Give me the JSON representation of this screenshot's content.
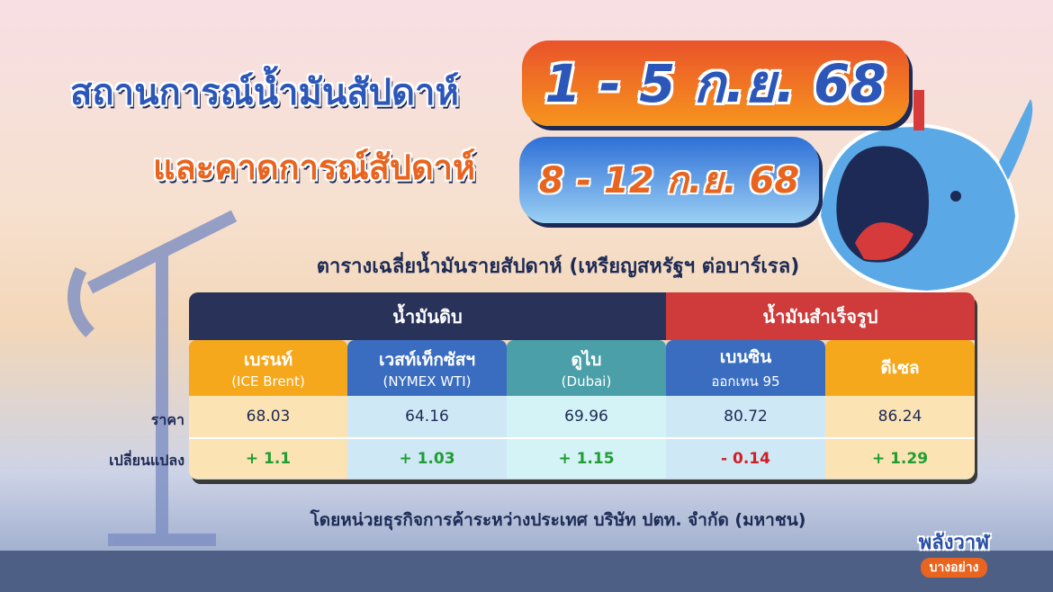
{
  "title": {
    "line1": "สถานการณ์น้ำมันสัปดาห์",
    "dates1": "1 - 5 ก.ย. 68",
    "line2": "และคาดการณ์สัปดาห์",
    "dates2": "8 - 12 ก.ย. 68"
  },
  "subtitle": "ตารางเฉลี่ยน้ำมันรายสัปดาห์ (เหรียญสหรัฐฯ ต่อบาร์เรล)",
  "table": {
    "groups": {
      "crude": "น้ำมันดิบ",
      "refined": "น้ำมันสำเร็จรูป"
    },
    "row_labels": {
      "price": "ราคา",
      "change": "เปลี่ยนแปลง"
    },
    "columns": [
      {
        "name": "เบรนท์",
        "sub": "(ICE Brent)",
        "price": "68.03",
        "change": "+ 1.1",
        "color": "#f5a81c"
      },
      {
        "name": "เวสท์เท็กซัสฯ",
        "sub": "(NYMEX WTI)",
        "price": "64.16",
        "change": "+ 1.03",
        "color": "#3a6dc0"
      },
      {
        "name": "ดูไบ",
        "sub": "(Dubai)",
        "price": "69.96",
        "change": "+ 1.15",
        "color": "#4a9fa8"
      },
      {
        "name": "เบนซิน",
        "sub": "ออกเทน 95",
        "price": "80.72",
        "change": "- 0.14",
        "color": "#3a6dc0"
      },
      {
        "name": "ดีเซล",
        "sub": "",
        "price": "86.24",
        "change": "+ 1.29",
        "color": "#f5a81c"
      }
    ]
  },
  "footer": "โดยหน่วยธุรกิจการค้าระหว่างประเทศ บริษัท ปตท. จำกัด (มหาชน)",
  "logo": {
    "line1": "พลังวาฬ",
    "line2": "บางอย่าง"
  },
  "colors": {
    "navy": "#29335a",
    "red": "#cf3a3a",
    "orange": "#f5a81c",
    "blue": "#3a6dc0",
    "teal": "#4a9fa8",
    "positive": "#1e9e32",
    "negative": "#d11f26"
  }
}
